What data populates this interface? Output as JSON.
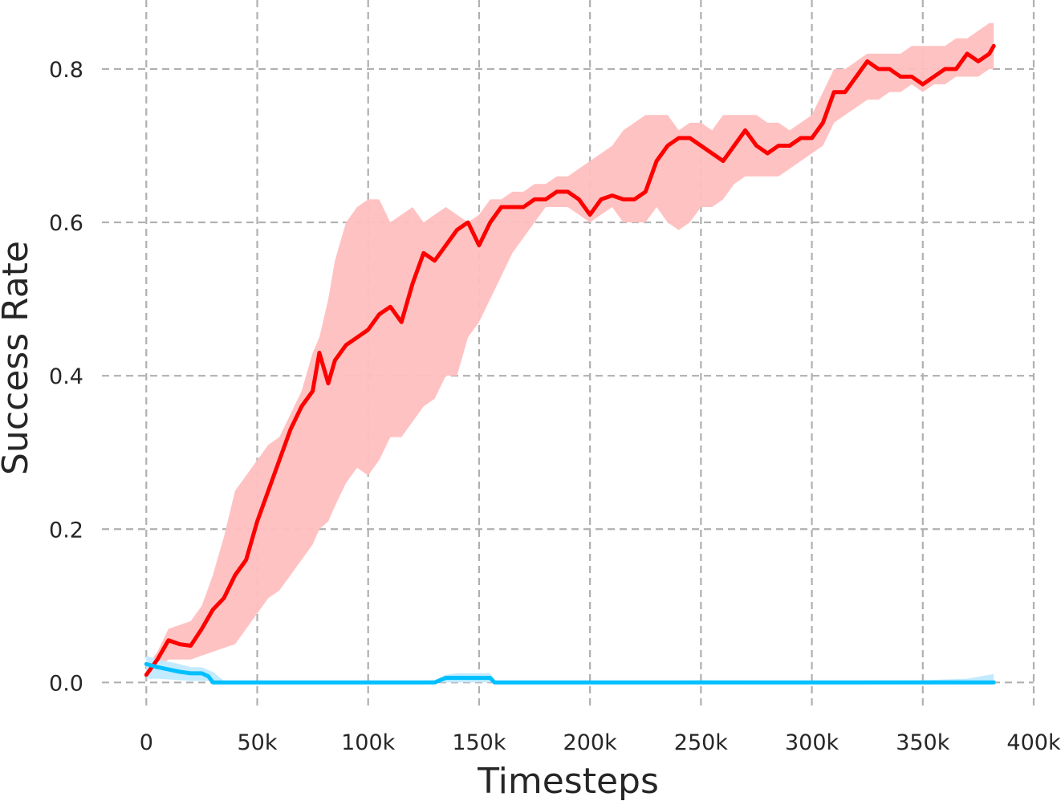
{
  "chart_data": {
    "type": "line",
    "xlabel": "Timesteps",
    "ylabel": "Success Rate",
    "xlim": [
      -20000,
      400000
    ],
    "ylim": [
      -0.03,
      0.89
    ],
    "x_ticks": [
      0,
      50000,
      100000,
      150000,
      200000,
      250000,
      300000,
      350000,
      400000
    ],
    "x_tick_labels": [
      "0",
      "50k",
      "100k",
      "150k",
      "200k",
      "250k",
      "300k",
      "350k",
      "400k"
    ],
    "y_ticks": [
      0.0,
      0.2,
      0.4,
      0.6,
      0.8
    ],
    "y_tick_labels": [
      "0.0",
      "0.2",
      "0.4",
      "0.6",
      "0.8"
    ],
    "grid": true,
    "legend": "none",
    "series": [
      {
        "color": "#ff0000",
        "band_color": "#ffbfbf",
        "x": [
          0,
          5000,
          10000,
          15000,
          20000,
          25000,
          30000,
          35000,
          40000,
          45000,
          50000,
          55000,
          60000,
          65000,
          70000,
          75000,
          78000,
          82000,
          85000,
          90000,
          95000,
          100000,
          105000,
          110000,
          115000,
          120000,
          125000,
          130000,
          135000,
          140000,
          145000,
          150000,
          155000,
          160000,
          165000,
          170000,
          175000,
          180000,
          185000,
          190000,
          195000,
          200000,
          205000,
          210000,
          215000,
          220000,
          225000,
          230000,
          235000,
          240000,
          245000,
          250000,
          255000,
          260000,
          265000,
          270000,
          275000,
          280000,
          285000,
          290000,
          295000,
          300000,
          305000,
          310000,
          315000,
          320000,
          325000,
          330000,
          335000,
          340000,
          345000,
          350000,
          355000,
          360000,
          365000,
          370000,
          375000,
          380000,
          382000
        ],
        "y": [
          0.01,
          0.03,
          0.055,
          0.05,
          0.048,
          0.07,
          0.095,
          0.11,
          0.14,
          0.16,
          0.21,
          0.25,
          0.29,
          0.33,
          0.36,
          0.38,
          0.43,
          0.39,
          0.42,
          0.44,
          0.45,
          0.46,
          0.48,
          0.49,
          0.47,
          0.52,
          0.56,
          0.55,
          0.57,
          0.59,
          0.6,
          0.57,
          0.6,
          0.62,
          0.62,
          0.62,
          0.63,
          0.63,
          0.64,
          0.64,
          0.63,
          0.61,
          0.63,
          0.635,
          0.63,
          0.63,
          0.64,
          0.68,
          0.7,
          0.71,
          0.71,
          0.7,
          0.69,
          0.68,
          0.7,
          0.72,
          0.7,
          0.69,
          0.7,
          0.7,
          0.71,
          0.71,
          0.73,
          0.77,
          0.77,
          0.79,
          0.81,
          0.8,
          0.8,
          0.79,
          0.79,
          0.78,
          0.79,
          0.8,
          0.8,
          0.82,
          0.81,
          0.82,
          0.83
        ],
        "lower": [
          0.01,
          0.02,
          0.03,
          0.03,
          0.03,
          0.035,
          0.04,
          0.045,
          0.05,
          0.07,
          0.09,
          0.11,
          0.12,
          0.14,
          0.16,
          0.18,
          0.2,
          0.21,
          0.23,
          0.26,
          0.28,
          0.27,
          0.29,
          0.32,
          0.32,
          0.34,
          0.36,
          0.37,
          0.4,
          0.4,
          0.45,
          0.47,
          0.5,
          0.53,
          0.56,
          0.58,
          0.6,
          0.62,
          0.62,
          0.62,
          0.61,
          0.6,
          0.61,
          0.62,
          0.6,
          0.6,
          0.6,
          0.62,
          0.6,
          0.59,
          0.6,
          0.62,
          0.62,
          0.63,
          0.65,
          0.66,
          0.66,
          0.66,
          0.66,
          0.67,
          0.68,
          0.69,
          0.7,
          0.73,
          0.74,
          0.75,
          0.76,
          0.76,
          0.77,
          0.77,
          0.78,
          0.77,
          0.78,
          0.78,
          0.79,
          0.79,
          0.79,
          0.8,
          0.8
        ],
        "upper": [
          0.02,
          0.04,
          0.07,
          0.075,
          0.08,
          0.1,
          0.14,
          0.19,
          0.25,
          0.27,
          0.29,
          0.31,
          0.32,
          0.35,
          0.38,
          0.43,
          0.45,
          0.5,
          0.55,
          0.6,
          0.62,
          0.63,
          0.63,
          0.6,
          0.61,
          0.62,
          0.6,
          0.61,
          0.62,
          0.61,
          0.6,
          0.61,
          0.63,
          0.63,
          0.64,
          0.64,
          0.65,
          0.65,
          0.66,
          0.66,
          0.67,
          0.68,
          0.69,
          0.7,
          0.72,
          0.73,
          0.74,
          0.74,
          0.74,
          0.72,
          0.73,
          0.73,
          0.72,
          0.74,
          0.74,
          0.74,
          0.74,
          0.73,
          0.73,
          0.72,
          0.73,
          0.74,
          0.77,
          0.8,
          0.8,
          0.81,
          0.82,
          0.82,
          0.82,
          0.82,
          0.83,
          0.83,
          0.83,
          0.83,
          0.84,
          0.84,
          0.85,
          0.86,
          0.86
        ]
      },
      {
        "color": "#00bfff",
        "band_color": "#bfeaff",
        "x": [
          0,
          5000,
          10000,
          15000,
          20000,
          25000,
          28000,
          30000,
          35000,
          50000,
          100000,
          130000,
          135000,
          140000,
          155000,
          157000,
          160000,
          200000,
          250000,
          300000,
          350000,
          370000,
          382000
        ],
        "y": [
          0.024,
          0.02,
          0.017,
          0.014,
          0.012,
          0.012,
          0.008,
          0.0,
          0.0,
          0.0,
          0.0,
          0.0,
          0.006,
          0.006,
          0.006,
          0.0,
          0.0,
          0.0,
          0.0,
          0.0,
          0.0,
          0.0,
          0.0
        ],
        "lower": [
          0.005,
          0.005,
          0.004,
          0.003,
          0.002,
          0.002,
          0.002,
          0.0,
          0.0,
          0.0,
          0.0,
          0.0,
          0.0,
          0.0,
          0.0,
          0.0,
          0.0,
          0.0,
          0.0,
          0.0,
          0.0,
          0.0,
          0.0
        ],
        "upper": [
          0.035,
          0.03,
          0.027,
          0.024,
          0.02,
          0.02,
          0.016,
          0.014,
          0.002,
          0.0,
          0.0,
          0.003,
          0.01,
          0.012,
          0.012,
          0.002,
          0.0,
          0.0,
          0.003,
          0.002,
          0.003,
          0.005,
          0.011
        ]
      }
    ]
  }
}
